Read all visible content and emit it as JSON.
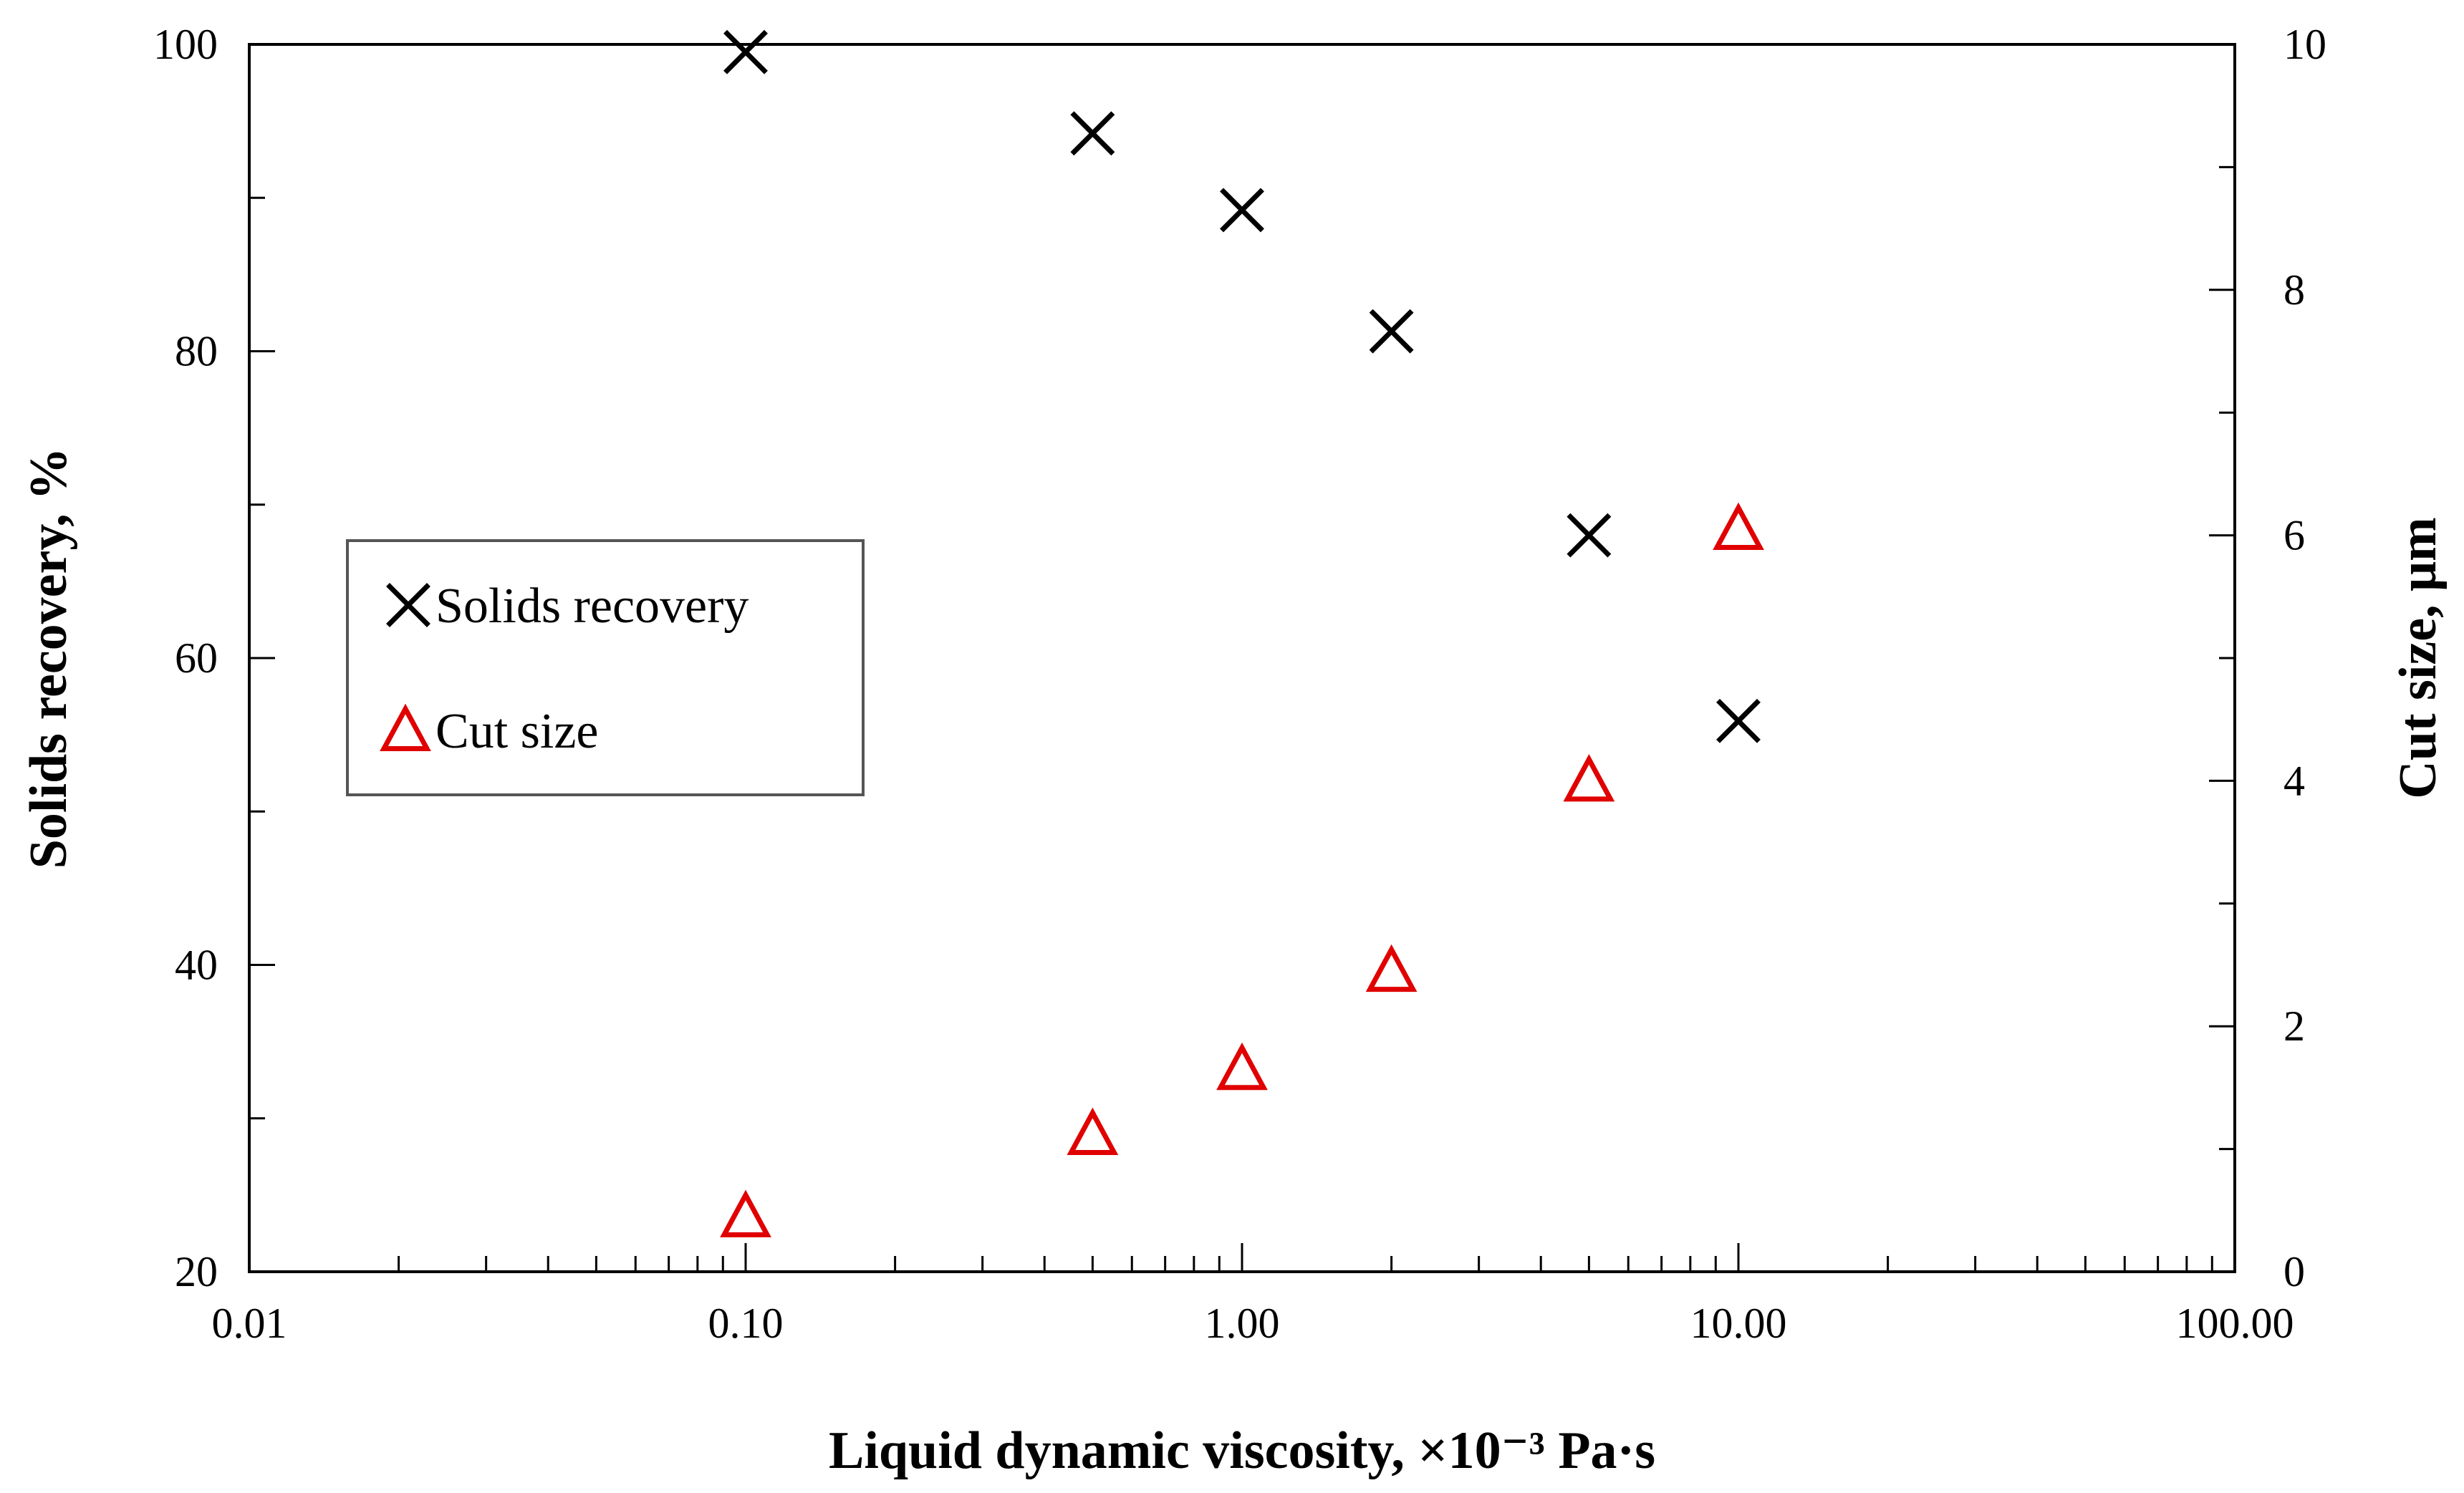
{
  "chart_data": {
    "type": "scatter",
    "title": "",
    "xlabel": "Liquid dynamic viscosity, ×10⁻³ Pa·s",
    "ylabel": "Solids recovery,  %",
    "y2label": "Cut size, μm",
    "xscale": "log",
    "xlim": [
      0.01,
      100
    ],
    "ylim": [
      20,
      100
    ],
    "y2lim": [
      0,
      10
    ],
    "x_ticks": [
      0.01,
      0.1,
      1,
      10,
      100
    ],
    "x_tick_labels": [
      "0.01",
      "0.10",
      "1.00",
      "10.00",
      "100.00"
    ],
    "y_ticks": [
      20,
      40,
      60,
      80,
      100
    ],
    "y_tick_labels": [
      "20",
      "40",
      "60",
      "80",
      "100"
    ],
    "y2_ticks": [
      0,
      2,
      4,
      6,
      8,
      10
    ],
    "y2_tick_labels": [
      "0",
      "2",
      "4",
      "6",
      "8",
      "10"
    ],
    "grid": false,
    "legend_position": "left-middle",
    "series": [
      {
        "name": "Solids recovery",
        "axis": "left",
        "marker": "x",
        "color": "#000000",
        "x": [
          0.1,
          0.5,
          1.0,
          2.0,
          5.0,
          10.0
        ],
        "y": [
          99.5,
          94.2,
          89.2,
          81.3,
          68.0,
          55.9
        ]
      },
      {
        "name": "Cut size",
        "axis": "right",
        "marker": "triangle",
        "color": "#e00000",
        "x": [
          0.1,
          0.5,
          1.0,
          2.0,
          5.0,
          10.0
        ],
        "y": [
          0.45,
          1.12,
          1.65,
          2.45,
          4.0,
          6.05
        ]
      }
    ]
  }
}
